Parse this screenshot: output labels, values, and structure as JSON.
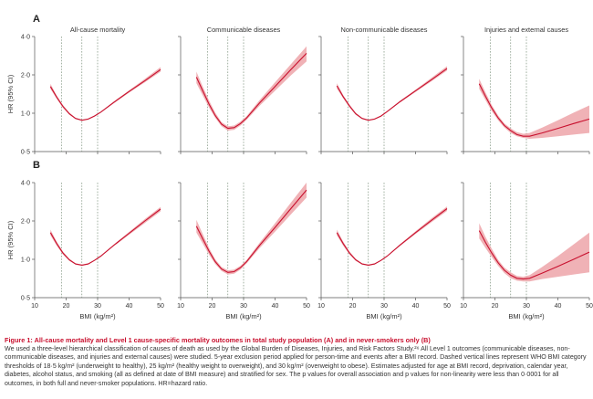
{
  "chart_data": {
    "type": "line",
    "layout": "small-multiples",
    "ylabel": "HR (95% CI)",
    "xlabel": "BMI (kg/m²)",
    "x_ticks": [
      10,
      20,
      30,
      40,
      50
    ],
    "y_ticks": [
      0.5,
      1.0,
      2.0,
      4.0
    ],
    "y_tick_labels": [
      "0·5",
      "1·0",
      "2·0",
      "4·0"
    ],
    "y_scale": "log",
    "xlim": [
      10,
      50
    ],
    "ylim": [
      0.5,
      4.0
    ],
    "reference_lines_x": [
      18.5,
      25,
      30
    ],
    "line_color": "#c8102e",
    "band_color": "#eda5a9",
    "rows": [
      {
        "label": "A",
        "panels": [
          {
            "title": "All-cause mortality",
            "x": [
              15,
              17,
              19,
              21,
              23,
              25,
              27,
              29,
              31,
              35,
              40,
              45,
              50
            ],
            "y": [
              1.62,
              1.34,
              1.13,
              0.99,
              0.91,
              0.88,
              0.9,
              0.95,
              1.02,
              1.21,
              1.48,
              1.8,
              2.2
            ],
            "lower": [
              1.55,
              1.3,
              1.1,
              0.97,
              0.9,
              0.87,
              0.89,
              0.94,
              1.01,
              1.19,
              1.45,
              1.75,
              2.12
            ],
            "upper": [
              1.7,
              1.38,
              1.16,
              1.01,
              0.92,
              0.89,
              0.91,
              0.96,
              1.03,
              1.23,
              1.51,
              1.86,
              2.3
            ]
          },
          {
            "title": "Communicable diseases",
            "x": [
              15,
              17,
              19,
              21,
              23,
              25,
              27,
              29,
              31,
              35,
              40,
              45,
              50
            ],
            "y": [
              1.92,
              1.5,
              1.18,
              0.96,
              0.82,
              0.76,
              0.77,
              0.83,
              0.92,
              1.2,
              1.62,
              2.2,
              2.95
            ],
            "lower": [
              1.72,
              1.38,
              1.11,
              0.92,
              0.79,
              0.73,
              0.74,
              0.8,
              0.89,
              1.14,
              1.5,
              1.98,
              2.55
            ],
            "upper": [
              2.12,
              1.62,
              1.26,
              1.01,
              0.85,
              0.79,
              0.8,
              0.86,
              0.95,
              1.26,
              1.75,
              2.42,
              3.35
            ]
          },
          {
            "title": "Non-communicable diseases",
            "x": [
              15,
              17,
              19,
              21,
              23,
              25,
              27,
              29,
              31,
              35,
              40,
              45,
              50
            ],
            "y": [
              1.64,
              1.35,
              1.14,
              0.99,
              0.91,
              0.88,
              0.9,
              0.95,
              1.03,
              1.23,
              1.5,
              1.83,
              2.24
            ],
            "lower": [
              1.56,
              1.31,
              1.11,
              0.97,
              0.9,
              0.87,
              0.89,
              0.94,
              1.02,
              1.21,
              1.47,
              1.78,
              2.16
            ],
            "upper": [
              1.72,
              1.39,
              1.17,
              1.01,
              0.92,
              0.89,
              0.91,
              0.96,
              1.04,
              1.25,
              1.53,
              1.89,
              2.34
            ]
          },
          {
            "title": "Injuries and external causes",
            "x": [
              15,
              17,
              19,
              21,
              23,
              25,
              27,
              29,
              31,
              35,
              40,
              45,
              50
            ],
            "y": [
              1.7,
              1.36,
              1.1,
              0.92,
              0.8,
              0.73,
              0.68,
              0.66,
              0.66,
              0.7,
              0.76,
              0.83,
              0.9
            ],
            "lower": [
              1.55,
              1.27,
              1.04,
              0.88,
              0.77,
              0.7,
              0.66,
              0.64,
              0.63,
              0.64,
              0.66,
              0.68,
              0.7
            ],
            "upper": [
              1.86,
              1.46,
              1.16,
              0.96,
              0.83,
              0.76,
              0.71,
              0.69,
              0.7,
              0.77,
              0.88,
              1.01,
              1.15
            ]
          }
        ]
      },
      {
        "label": "B",
        "panels": [
          {
            "title": "",
            "x": [
              15,
              17,
              19,
              21,
              23,
              25,
              27,
              29,
              31,
              35,
              40,
              45,
              50
            ],
            "y": [
              1.62,
              1.33,
              1.12,
              0.99,
              0.92,
              0.9,
              0.92,
              0.98,
              1.06,
              1.28,
              1.6,
              2.0,
              2.48
            ],
            "lower": [
              1.54,
              1.28,
              1.09,
              0.97,
              0.91,
              0.89,
              0.91,
              0.97,
              1.05,
              1.26,
              1.56,
              1.93,
              2.38
            ],
            "upper": [
              1.71,
              1.38,
              1.15,
              1.01,
              0.93,
              0.91,
              0.93,
              0.99,
              1.07,
              1.3,
              1.64,
              2.07,
              2.58
            ]
          },
          {
            "title": "",
            "x": [
              15,
              17,
              19,
              21,
              23,
              25,
              27,
              29,
              31,
              35,
              40,
              45,
              50
            ],
            "y": [
              1.82,
              1.45,
              1.16,
              0.96,
              0.84,
              0.79,
              0.8,
              0.86,
              0.96,
              1.28,
              1.78,
              2.5,
              3.5
            ],
            "lower": [
              1.62,
              1.33,
              1.09,
              0.92,
              0.81,
              0.76,
              0.77,
              0.83,
              0.93,
              1.22,
              1.65,
              2.25,
              3.05
            ],
            "upper": [
              2.04,
              1.58,
              1.23,
              1.0,
              0.87,
              0.82,
              0.83,
              0.89,
              0.99,
              1.34,
              1.92,
              2.78,
              4.0
            ]
          },
          {
            "title": "",
            "x": [
              15,
              17,
              19,
              21,
              23,
              25,
              27,
              29,
              31,
              35,
              40,
              45,
              50
            ],
            "y": [
              1.62,
              1.33,
              1.12,
              0.99,
              0.92,
              0.9,
              0.92,
              0.98,
              1.06,
              1.29,
              1.62,
              2.02,
              2.5
            ],
            "lower": [
              1.54,
              1.28,
              1.09,
              0.97,
              0.91,
              0.89,
              0.91,
              0.97,
              1.05,
              1.27,
              1.58,
              1.95,
              2.4
            ],
            "upper": [
              1.71,
              1.38,
              1.15,
              1.01,
              0.93,
              0.91,
              0.93,
              0.99,
              1.07,
              1.31,
              1.66,
              2.09,
              2.6
            ]
          },
          {
            "title": "",
            "x": [
              15,
              17,
              19,
              21,
              23,
              25,
              27,
              29,
              31,
              35,
              40,
              45,
              50
            ],
            "y": [
              1.68,
              1.36,
              1.12,
              0.94,
              0.82,
              0.75,
              0.71,
              0.7,
              0.71,
              0.78,
              0.88,
              1.0,
              1.14
            ],
            "lower": [
              1.46,
              1.23,
              1.04,
              0.89,
              0.78,
              0.71,
              0.68,
              0.67,
              0.67,
              0.7,
              0.73,
              0.76,
              0.79
            ],
            "upper": [
              1.92,
              1.5,
              1.21,
              0.99,
              0.86,
              0.79,
              0.74,
              0.73,
              0.75,
              0.87,
              1.06,
              1.31,
              1.62
            ]
          }
        ]
      }
    ]
  },
  "caption": {
    "title": "Figure 1: All-cause mortality and Level 1 cause-specific mortality outcomes in total study population (A) and in never-smokers only (B)",
    "body": "We used a three-level hierarchical classification of causes of death as used by the Global Burden of Diseases, Injuries, and Risk Factors Study.²⁶ All Level 1 outcomes (communicable diseases, non-communicable diseases, and injuries and external causes) were studied. 5-year exclusion period applied for person-time and events after a BMI record. Dashed vertical lines represent WHO BMI category thresholds of 18·5 kg/m² (underweight to healthy), 25 kg/m² (healthy weight to overweight), and 30 kg/m² (overweight to obese). Estimates adjusted for age at BMI record, deprivation, calendar year, diabetes, alcohol status, and smoking (all as defined at date of BMI measure) and stratified for sex. The p values for overall association and p values for non-linearity were less than 0·0001 for all outcomes, in both full and never-smoker populations. HR=hazard ratio."
  }
}
